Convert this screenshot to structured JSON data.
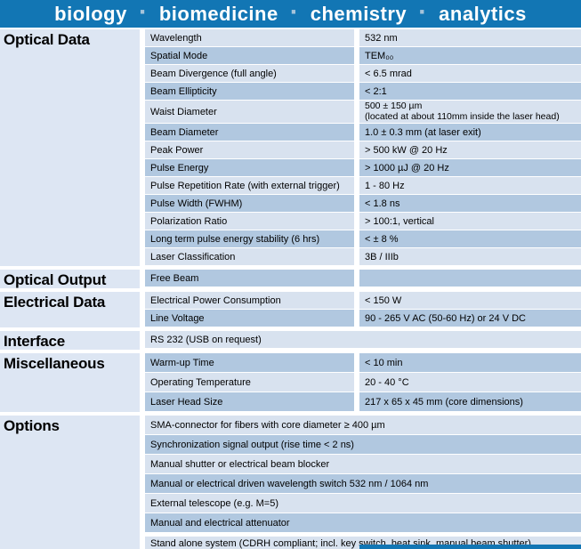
{
  "banner": {
    "words": [
      "biology",
      "biomedicine",
      "chemistry",
      "analytics"
    ],
    "separator": "·",
    "background_color": "#1276b4",
    "word_color": "#ffffff",
    "dot_color": "#a5c3da"
  },
  "table": {
    "colors": {
      "row_light": "#d8e2ef",
      "row_dark": "#b1c8e0",
      "section_label_bg": "#dde6f3",
      "text": "#000000"
    },
    "sections": [
      {
        "name": "Optical Data",
        "rows": [
          {
            "param": "Wavelength",
            "value": "532 nm",
            "shade": "light"
          },
          {
            "param": "Spatial Mode",
            "value": "TEM₀₀",
            "shade": "dark"
          },
          {
            "param": "Beam Divergence (full angle)",
            "value": "< 6.5 mrad",
            "shade": "light"
          },
          {
            "param": "Beam Ellipticity",
            "value": "< 2:1",
            "shade": "dark"
          },
          {
            "param": "Waist Diameter",
            "value": "500 ± 150 µm",
            "value2": "(located at about 110mm inside the laser head)",
            "shade": "light",
            "tall": true
          },
          {
            "param": "Beam Diameter",
            "value": "1.0 ± 0.3 mm (at laser exit)",
            "shade": "dark"
          },
          {
            "param": "Peak Power",
            "value": "> 500 kW @ 20 Hz",
            "shade": "light"
          },
          {
            "param": "Pulse Energy",
            "value": "> 1000 µJ @ 20 Hz",
            "shade": "dark"
          },
          {
            "param": "Pulse Repetition Rate (with external trigger)",
            "value": "1 - 80 Hz",
            "shade": "light"
          },
          {
            "param": "Pulse Width (FWHM)",
            "value": "< 1.8 ns",
            "shade": "dark"
          },
          {
            "param": "Polarization Ratio",
            "value": "> 100:1, vertical",
            "shade": "light"
          },
          {
            "param": "Long term pulse energy stability (6 hrs)",
            "value": "< ± 8 %",
            "shade": "dark"
          },
          {
            "param": "Laser Classification",
            "value": "3B / IIIb",
            "shade": "light"
          }
        ]
      },
      {
        "name": "Optical Output",
        "rows": [
          {
            "param": "Free Beam",
            "value": "",
            "shade": "dark"
          }
        ]
      },
      {
        "name": "Electrical Data",
        "rows": [
          {
            "param": "Electrical Power Consumption",
            "value": "< 150 W",
            "shade": "light"
          },
          {
            "param": "Line Voltage",
            "value": "90 - 265 V AC (50-60 Hz) or 24 V DC",
            "shade": "dark"
          }
        ]
      },
      {
        "name": "Interface",
        "rows": [
          {
            "param": "RS 232 (USB on request)",
            "shade": "light",
            "span": "full"
          }
        ]
      },
      {
        "name": "Miscellaneous",
        "roomy": true,
        "rows": [
          {
            "param": "Warm-up Time",
            "value": "< 10 min",
            "shade": "dark"
          },
          {
            "param": "Operating Temperature",
            "value": "20 - 40 °C",
            "shade": "light"
          },
          {
            "param": "Laser Head Size",
            "value": "217 x 65 x 45 mm (core dimensions)",
            "shade": "dark"
          }
        ]
      },
      {
        "name": "Options",
        "roomy": true,
        "rows": [
          {
            "param": "SMA-connector for fibers with core diameter ≥ 400 µm",
            "shade": "light",
            "span": "full"
          },
          {
            "param": "Synchronization signal output (rise time < 2 ns)",
            "shade": "dark",
            "span": "full"
          },
          {
            "param": "Manual shutter or electrical beam blocker",
            "shade": "light",
            "span": "full"
          },
          {
            "param": "Manual or electrical driven wavelength switch 532 nm / 1064 nm",
            "shade": "dark",
            "span": "full"
          },
          {
            "param": "External telescope (e.g. M=5)",
            "shade": "light",
            "span": "full"
          },
          {
            "param": "Manual and electrical attenuator",
            "shade": "dark",
            "span": "full"
          },
          {
            "param": "Stand alone system (CDRH compliant; incl. key switch, heat sink, manual beam shutter)",
            "shade": "light",
            "span": "full",
            "gap_above": true
          }
        ]
      }
    ]
  }
}
